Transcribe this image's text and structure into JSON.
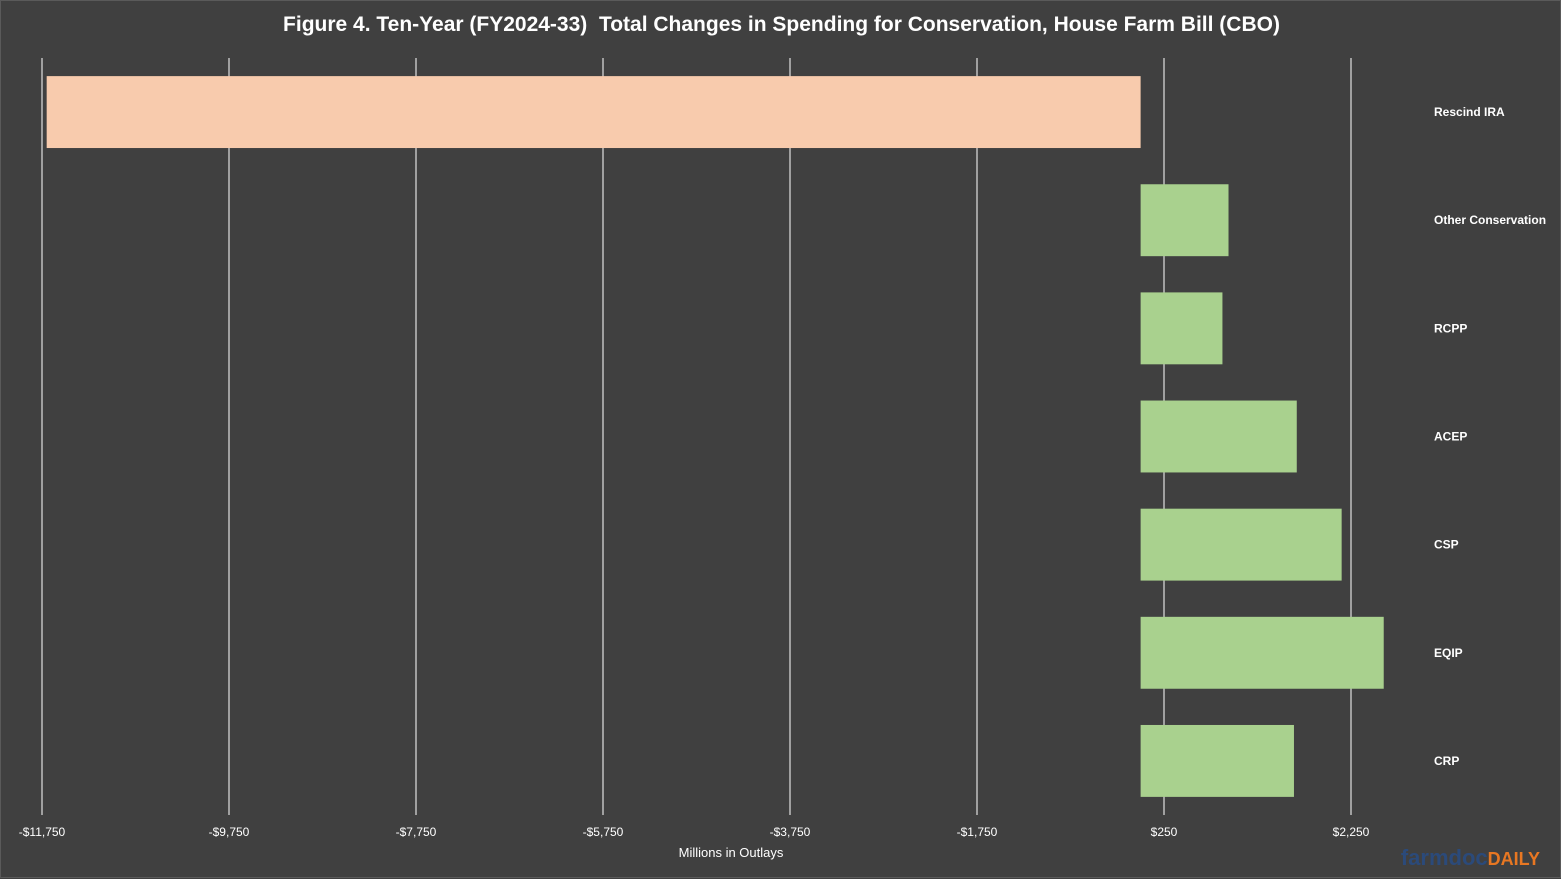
{
  "colors": {
    "background": "#404040",
    "negative_bar": "#f8cbad",
    "positive_bar": "#a9d18e",
    "gridline": "#ffffff",
    "text": "#ffffff",
    "brand_primary": "#2b4a7a",
    "brand_accent": "#e87722"
  },
  "brand": {
    "part1": "farmdoc",
    "part2": "DAILY"
  },
  "chart_data": {
    "type": "bar",
    "orientation": "horizontal",
    "title": "Figure 4. Ten-Year (FY2024-33)  Total Changes in Spending for Conservation, House Farm Bill (CBO)",
    "xlabel": "Millions in Outlays",
    "ylabel": "",
    "categories": [
      "Rescind IRA",
      "Other Conservation",
      "RCPP",
      "ACEP",
      "CSP",
      "EQIP",
      "CRP"
    ],
    "values": [
      -11700,
      940,
      875,
      1670,
      2150,
      2600,
      1640
    ],
    "xlim": [
      -11750,
      2250
    ],
    "xticks": [
      -11750,
      -9750,
      -7750,
      -5750,
      -3750,
      -1750,
      250,
      2250
    ],
    "xtick_labels": [
      "-$11,750",
      "-$9,750",
      "-$7,750",
      "-$5,750",
      "-$3,750",
      "-$1,750",
      "$250",
      "$2,250"
    ],
    "grid": true,
    "legend": "none"
  }
}
